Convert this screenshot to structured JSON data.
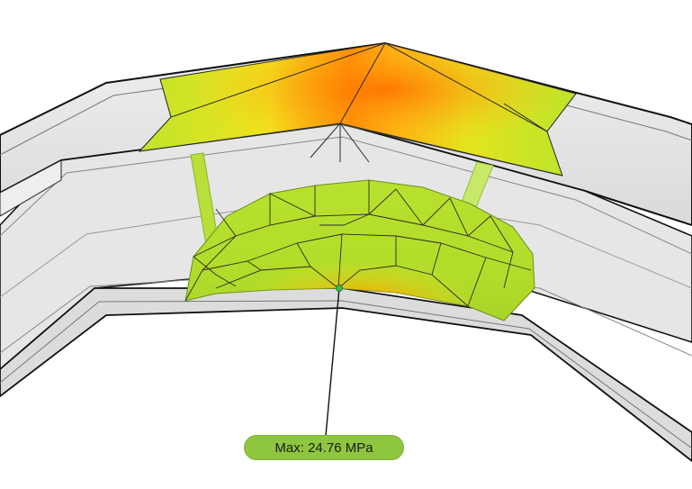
{
  "viewer": {
    "max_stress_label": "Max: 24.76 MPa"
  },
  "colors": {
    "background": "#ffffff",
    "mesh_low": "#b7e22a",
    "mesh_mid": "#f1e21c",
    "mesh_high": "#ff7a00",
    "label_background": "#8ec63f",
    "shell_surface": "#e6e6e6",
    "edge": "#111111"
  }
}
